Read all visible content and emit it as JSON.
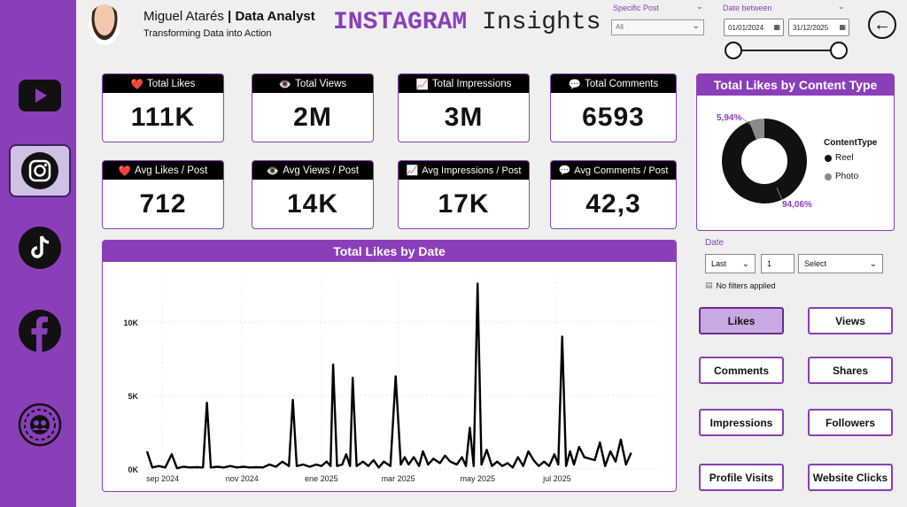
{
  "header": {
    "name": "Miguel Atarés",
    "role": "Data Analyst",
    "separator": " | ",
    "tagline": "Transforming Data into Action",
    "title_bold": "INSTAGRAM",
    "title_rest": " Insights"
  },
  "filters": {
    "specific_post_label": "Specific Post",
    "specific_post_value": "All",
    "date_between_label": "Date between",
    "start_date": "01/01/2024",
    "end_date": "31/12/2025"
  },
  "sidebar": {
    "items": [
      {
        "name": "youtube",
        "icon": "youtube-icon"
      },
      {
        "name": "instagram",
        "icon": "instagram-icon",
        "active": true
      },
      {
        "name": "tiktok",
        "icon": "tiktok-icon"
      },
      {
        "name": "facebook",
        "icon": "facebook-icon"
      },
      {
        "name": "community",
        "icon": "community-icon"
      }
    ]
  },
  "kpis": [
    {
      "emoji": "❤️",
      "label": "Total Likes",
      "value": "111K"
    },
    {
      "emoji": "👁️",
      "label": "Total Views",
      "value": "2M"
    },
    {
      "emoji": "📈",
      "label": "Total Impressions",
      "value": "3M"
    },
    {
      "emoji": "💬",
      "label": "Total Comments",
      "value": "6593"
    },
    {
      "emoji": "❤️",
      "label": "Avg Likes / Post",
      "value": "712"
    },
    {
      "emoji": "👁️",
      "label": "Avg Views / Post",
      "value": "14K"
    },
    {
      "emoji": "📈",
      "label": "Avg Impressions / Post",
      "value": "17K"
    },
    {
      "emoji": "💬",
      "label": "Avg Comments / Post",
      "value": "42,3"
    }
  ],
  "donut": {
    "title": "Total Likes by Content Type",
    "legend_title": "ContentType",
    "slices": [
      {
        "name": "Reel",
        "pct": 94.06,
        "label": "94,06%",
        "color": "#111111"
      },
      {
        "name": "Photo",
        "pct": 5.94,
        "label": "5,94%",
        "color": "#8a8a8a"
      }
    ],
    "label_color": "#8a3fb9"
  },
  "date_filter": {
    "label": "Date",
    "mode": "Last",
    "count": "1",
    "unit": "Select",
    "status": "No filters applied"
  },
  "metric_buttons": [
    {
      "label": "Likes",
      "active": true
    },
    {
      "label": "Views"
    },
    {
      "label": "Comments"
    },
    {
      "label": "Shares"
    },
    {
      "label": "Impressions"
    },
    {
      "label": "Followers"
    },
    {
      "label": "Profile Visits"
    },
    {
      "label": "Website Clicks"
    }
  ],
  "chart_data": {
    "type": "line",
    "title": "Total Likes by Date",
    "xlabel": "",
    "ylabel": "",
    "ylim": [
      0,
      13000
    ],
    "yticks": [
      0,
      5000,
      10000
    ],
    "ytick_labels": [
      "0K",
      "5K",
      "10K"
    ],
    "xlim": [
      "2024-08-20",
      "2025-09-16"
    ],
    "xticks": [
      "2024-09-01",
      "2024-11-01",
      "2025-01-01",
      "2025-03-01",
      "2025-05-01",
      "2025-07-01"
    ],
    "xtick_labels": [
      "sep 2024",
      "nov 2024",
      "ene 2025",
      "mar 2025",
      "may 2025",
      "jul 2025"
    ],
    "series": [
      {
        "color": "#000000",
        "points": [
          [
            "2024-08-20",
            1200
          ],
          [
            "2024-08-24",
            100
          ],
          [
            "2024-08-29",
            200
          ],
          [
            "2024-09-03",
            100
          ],
          [
            "2024-09-08",
            1000
          ],
          [
            "2024-09-12",
            50
          ],
          [
            "2024-09-17",
            150
          ],
          [
            "2024-09-22",
            100
          ],
          [
            "2024-09-27",
            120
          ],
          [
            "2024-10-02",
            100
          ],
          [
            "2024-10-05",
            4500
          ],
          [
            "2024-10-08",
            100
          ],
          [
            "2024-10-13",
            150
          ],
          [
            "2024-10-18",
            100
          ],
          [
            "2024-10-23",
            200
          ],
          [
            "2024-10-28",
            100
          ],
          [
            "2024-11-02",
            150
          ],
          [
            "2024-11-07",
            100
          ],
          [
            "2024-11-12",
            120
          ],
          [
            "2024-11-17",
            100
          ],
          [
            "2024-11-22",
            300
          ],
          [
            "2024-11-27",
            150
          ],
          [
            "2024-12-02",
            500
          ],
          [
            "2024-12-07",
            200
          ],
          [
            "2024-12-10",
            4700
          ],
          [
            "2024-12-13",
            200
          ],
          [
            "2024-12-18",
            300
          ],
          [
            "2024-12-23",
            150
          ],
          [
            "2024-12-28",
            300
          ],
          [
            "2025-01-01",
            200
          ],
          [
            "2025-01-05",
            500
          ],
          [
            "2025-01-08",
            200
          ],
          [
            "2025-01-10",
            7100
          ],
          [
            "2025-01-13",
            200
          ],
          [
            "2025-01-17",
            300
          ],
          [
            "2025-01-20",
            1000
          ],
          [
            "2025-01-23",
            200
          ],
          [
            "2025-01-25",
            6200
          ],
          [
            "2025-01-28",
            200
          ],
          [
            "2025-02-02",
            500
          ],
          [
            "2025-02-06",
            200
          ],
          [
            "2025-02-10",
            600
          ],
          [
            "2025-02-14",
            100
          ],
          [
            "2025-02-18",
            500
          ],
          [
            "2025-02-23",
            200
          ],
          [
            "2025-02-27",
            6300
          ],
          [
            "2025-03-03",
            300
          ],
          [
            "2025-03-06",
            800
          ],
          [
            "2025-03-09",
            300
          ],
          [
            "2025-03-13",
            800
          ],
          [
            "2025-03-17",
            200
          ],
          [
            "2025-03-20",
            1200
          ],
          [
            "2025-03-24",
            300
          ],
          [
            "2025-03-28",
            700
          ],
          [
            "2025-04-02",
            400
          ],
          [
            "2025-04-06",
            900
          ],
          [
            "2025-04-10",
            500
          ],
          [
            "2025-04-15",
            300
          ],
          [
            "2025-04-19",
            800
          ],
          [
            "2025-04-22",
            200
          ],
          [
            "2025-04-25",
            2800
          ],
          [
            "2025-04-28",
            200
          ],
          [
            "2025-05-01",
            12600
          ],
          [
            "2025-05-04",
            300
          ],
          [
            "2025-05-08",
            1300
          ],
          [
            "2025-05-12",
            200
          ],
          [
            "2025-05-16",
            500
          ],
          [
            "2025-05-20",
            200
          ],
          [
            "2025-05-24",
            400
          ],
          [
            "2025-05-28",
            100
          ],
          [
            "2025-06-01",
            800
          ],
          [
            "2025-06-05",
            200
          ],
          [
            "2025-06-09",
            1200
          ],
          [
            "2025-06-13",
            600
          ],
          [
            "2025-06-17",
            200
          ],
          [
            "2025-06-21",
            500
          ],
          [
            "2025-06-25",
            200
          ],
          [
            "2025-06-29",
            1000
          ],
          [
            "2025-07-02",
            300
          ],
          [
            "2025-07-05",
            9000
          ],
          [
            "2025-07-08",
            200
          ],
          [
            "2025-07-11",
            1200
          ],
          [
            "2025-07-14",
            300
          ],
          [
            "2025-07-18",
            1500
          ],
          [
            "2025-07-22",
            800
          ],
          [
            "2025-07-26",
            700
          ],
          [
            "2025-07-30",
            600
          ],
          [
            "2025-08-03",
            1800
          ],
          [
            "2025-08-07",
            200
          ],
          [
            "2025-08-11",
            1200
          ],
          [
            "2025-08-15",
            500
          ],
          [
            "2025-08-19",
            2000
          ],
          [
            "2025-08-23",
            300
          ],
          [
            "2025-08-27",
            1100
          ]
        ]
      }
    ]
  }
}
